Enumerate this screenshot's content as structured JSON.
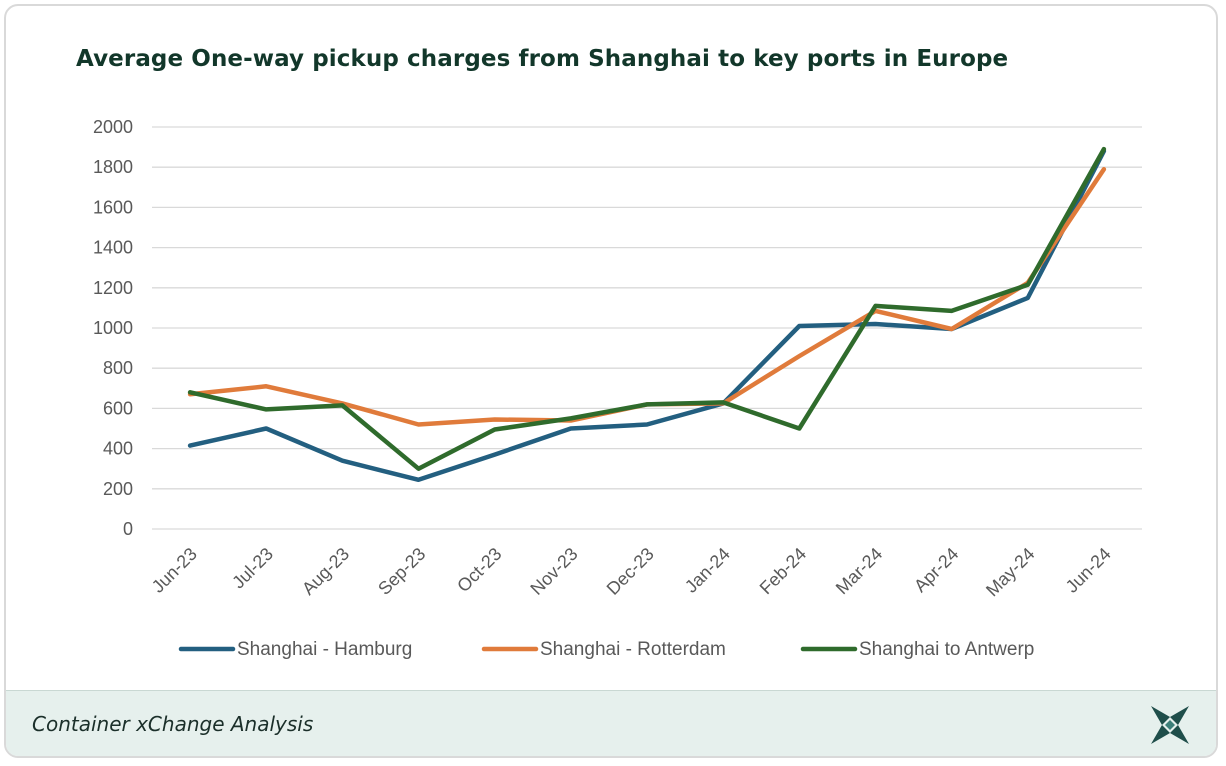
{
  "page": {
    "footer_text": "Container xChange Analysis",
    "logo_icon": "xchange-logo-icon"
  },
  "chart_data": {
    "type": "line",
    "title": "Average One-way pickup charges from Shanghai to key ports in Europe",
    "xlabel": "",
    "ylabel": "",
    "categories": [
      "Jun-23",
      "Jul-23",
      "Aug-23",
      "Sep-23",
      "Oct-23",
      "Nov-23",
      "Dec-23",
      "Jan-24",
      "Feb-24",
      "Mar-24",
      "Apr-24",
      "May-24",
      "Jun-24"
    ],
    "ylim": [
      0,
      2000
    ],
    "yticks": [
      "0",
      "200",
      "400",
      "600",
      "800",
      "1000",
      "1200",
      "1400",
      "1600",
      "1800",
      "2000"
    ],
    "grid": true,
    "legend_position": "bottom",
    "series": [
      {
        "name": "Shanghai - Hamburg",
        "color": "#235f80",
        "values": [
          415,
          500,
          340,
          245,
          370,
          500,
          520,
          625,
          1010,
          1020,
          995,
          1150,
          1880
        ]
      },
      {
        "name": "Shanghai - Rotterdam",
        "color": "#e07b3b",
        "values": [
          670,
          710,
          625,
          520,
          545,
          540,
          620,
          625,
          860,
          1085,
          995,
          1225,
          1790
        ]
      },
      {
        "name": "Shanghai to Antwerp",
        "color": "#2f6b2c",
        "values": [
          680,
          595,
          615,
          300,
          495,
          550,
          620,
          630,
          500,
          1110,
          1085,
          1215,
          1890
        ]
      }
    ]
  }
}
